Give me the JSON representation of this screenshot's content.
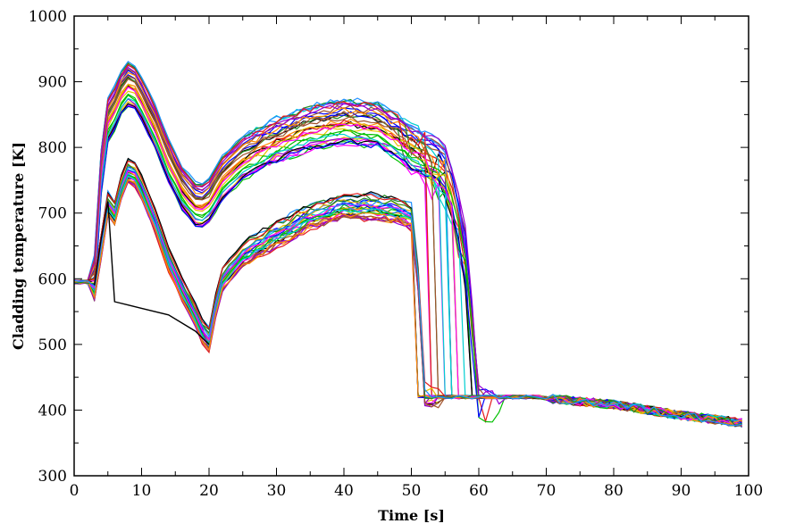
{
  "chart_data": {
    "type": "line",
    "title": "",
    "xlabel": "Time [s]",
    "ylabel": "Cladding temperature [K]",
    "xlim": [
      0,
      100
    ],
    "ylim": [
      300,
      1000
    ],
    "xticks": [
      0,
      10,
      20,
      30,
      40,
      50,
      60,
      70,
      80,
      90,
      100
    ],
    "xtick_labels": [
      "0",
      "10",
      "20",
      "30",
      "40",
      "50",
      "60",
      "70",
      "80",
      "90",
      "100"
    ],
    "yticks": [
      300,
      400,
      500,
      600,
      700,
      800,
      900,
      1000
    ],
    "ytick_labels": [
      "300",
      "400",
      "500",
      "600",
      "700",
      "800",
      "900",
      "1000"
    ],
    "grid": false,
    "legend": "none",
    "series_count": 60,
    "series_colors": [
      "#000000",
      "#e41a1c",
      "#00c000",
      "#0000ff",
      "#e6c200",
      "#9400d3",
      "#00ced1",
      "#ff00ff",
      "#a0522d",
      "#ff8c00",
      "#228b22",
      "#1e90ff"
    ],
    "envelopes": {
      "upper_peak_group": {
        "x": [
          0,
          2,
          3,
          4,
          5,
          6,
          7,
          8,
          9,
          10,
          12,
          14,
          16,
          18,
          19,
          20,
          22,
          25,
          30,
          35,
          40,
          45,
          48,
          50,
          52,
          54,
          55,
          56,
          57,
          58,
          60,
          62,
          65,
          70,
          80,
          90,
          99
        ],
        "y": [
          595,
          592,
          600,
          760,
          840,
          858,
          882,
          895,
          890,
          872,
          830,
          778,
          737,
          712,
          710,
          718,
          752,
          782,
          810,
          828,
          838,
          832,
          815,
          800,
          790,
          780,
          770,
          740,
          700,
          650,
          430,
          421,
          418,
          418,
          410,
          395,
          385
        ]
      },
      "lower_peak_group": {
        "x": [
          0,
          2,
          3,
          4,
          5,
          6,
          7,
          8,
          9,
          10,
          12,
          14,
          16,
          18,
          19,
          20,
          21,
          22,
          25,
          30,
          35,
          40,
          45,
          48,
          50,
          51,
          52,
          55,
          60,
          70,
          80,
          90,
          99
        ],
        "y": [
          595,
          592,
          585,
          650,
          715,
          700,
          740,
          765,
          760,
          740,
          690,
          630,
          585,
          545,
          520,
          508,
          560,
          600,
          637,
          668,
          695,
          712,
          710,
          705,
          695,
          600,
          425,
          420,
          418,
          415,
          400,
          385,
          372
        ]
      },
      "early_quench_path": {
        "x": [
          3,
          4,
          5,
          6,
          8,
          10,
          14,
          18,
          20
        ],
        "y": [
          590,
          660,
          718,
          565,
          560,
          555,
          545,
          520,
          500
        ]
      }
    }
  }
}
